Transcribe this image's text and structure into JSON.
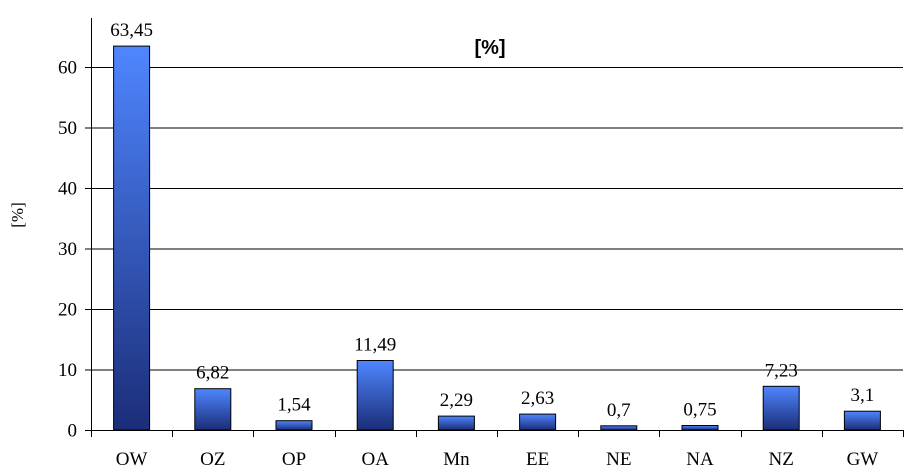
{
  "chart_data": {
    "type": "bar",
    "title": "[%]",
    "xlabel": "",
    "ylabel": "[%]",
    "categories": [
      "OW",
      "OZ",
      "OP",
      "OA",
      "Mn",
      "EE",
      "NE",
      "NA",
      "NZ",
      "GW"
    ],
    "values": [
      63.45,
      6.82,
      1.54,
      11.49,
      2.29,
      2.63,
      0.7,
      0.75,
      7.23,
      3.1
    ],
    "value_labels": [
      "63,45",
      "6,82",
      "1,54",
      "11,49",
      "2,29",
      "2,63",
      "0,7",
      "0,75",
      "7,23",
      "3,1"
    ],
    "ylim": [
      0,
      60
    ],
    "yticks": [
      0,
      10,
      20,
      30,
      40,
      50,
      60
    ],
    "ytick_labels": [
      "0",
      "10",
      "20",
      "30",
      "40",
      "50",
      "60"
    ],
    "grid": true,
    "legend": "none",
    "colors": {
      "bar_top": "#4f86ff",
      "bar_bottom": "#1b2d78",
      "bar_edge": "#000000",
      "grid": "#000000"
    }
  }
}
